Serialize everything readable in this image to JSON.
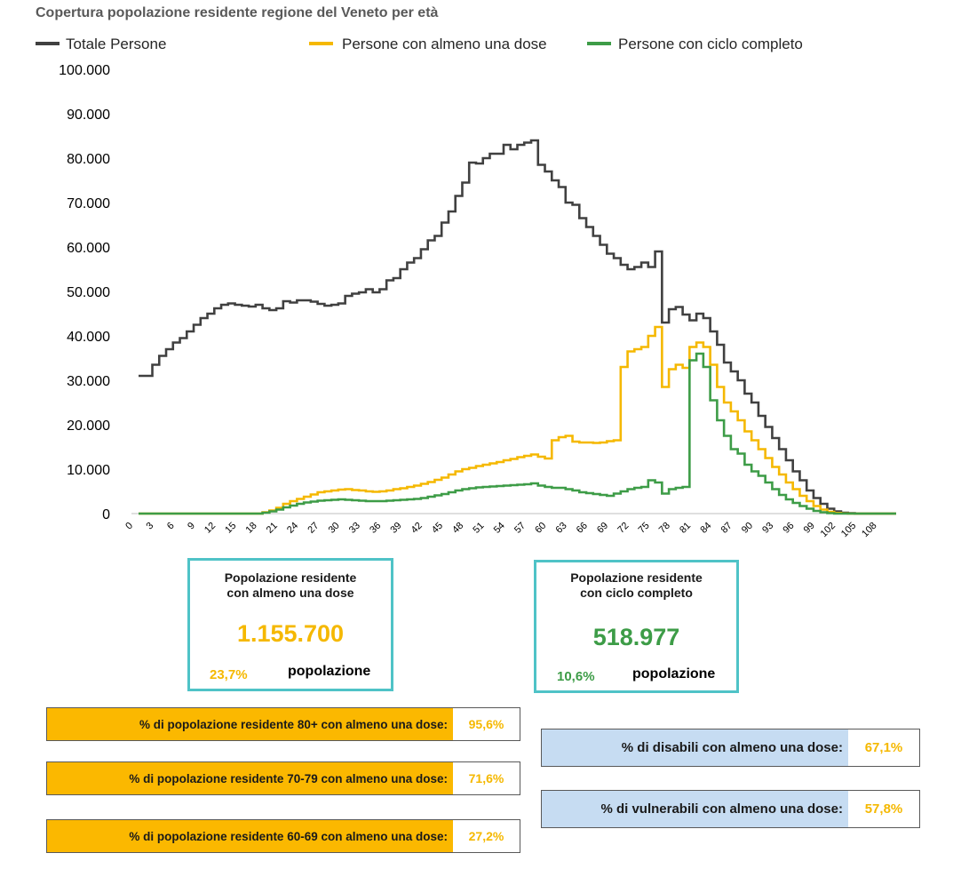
{
  "chart_data": {
    "type": "line",
    "title": "Copertura popolazione residente regione del Veneto per età",
    "ylim": [
      0,
      100000
    ],
    "xlim": [
      0,
      110
    ],
    "ytick_labels": [
      "0",
      "10.000",
      "20.000",
      "30.000",
      "40.000",
      "50.000",
      "60.000",
      "70.000",
      "80.000",
      "90.000",
      "100.000"
    ],
    "ytick_values": [
      0,
      10000,
      20000,
      30000,
      40000,
      50000,
      60000,
      70000,
      80000,
      90000,
      100000
    ],
    "xtick_values": [
      0,
      3,
      6,
      9,
      12,
      15,
      18,
      21,
      24,
      27,
      30,
      33,
      36,
      39,
      42,
      45,
      48,
      51,
      54,
      57,
      60,
      63,
      66,
      69,
      72,
      75,
      78,
      81,
      84,
      87,
      90,
      93,
      96,
      99,
      102,
      105,
      108
    ],
    "xtick_labels": [
      "0",
      "3",
      "6",
      "9",
      "12",
      "15",
      "18",
      "21",
      "24",
      "27",
      "30",
      "33",
      "36",
      "39",
      "42",
      "45",
      "48",
      "51",
      "54",
      "57",
      "60",
      "63",
      "66",
      "69",
      "72",
      "75",
      "78",
      "81",
      "84",
      "87",
      "90",
      "93",
      "96",
      "99",
      "102",
      "105",
      "108"
    ],
    "legend_position": "top",
    "grid": false,
    "step": true,
    "series": [
      {
        "name": "Totale Persone",
        "color": "#404040",
        "values": [
          [
            0,
            31000
          ],
          [
            2,
            33500
          ],
          [
            3,
            35500
          ],
          [
            4,
            37000
          ],
          [
            5,
            38500
          ],
          [
            6,
            39500
          ],
          [
            7,
            41000
          ],
          [
            8,
            42500
          ],
          [
            9,
            44000
          ],
          [
            10,
            45000
          ],
          [
            11,
            46200
          ],
          [
            12,
            47000
          ],
          [
            13,
            47300
          ],
          [
            14,
            47000
          ],
          [
            15,
            46800
          ],
          [
            16,
            46600
          ],
          [
            17,
            47000
          ],
          [
            18,
            46200
          ],
          [
            19,
            45800
          ],
          [
            20,
            46200
          ],
          [
            21,
            47800
          ],
          [
            22,
            47500
          ],
          [
            23,
            48000
          ],
          [
            24,
            48000
          ],
          [
            25,
            47700
          ],
          [
            26,
            47200
          ],
          [
            27,
            46800
          ],
          [
            28,
            47000
          ],
          [
            29,
            47300
          ],
          [
            30,
            49000
          ],
          [
            31,
            49500
          ],
          [
            32,
            49800
          ],
          [
            33,
            50500
          ],
          [
            34,
            49800
          ],
          [
            35,
            50500
          ],
          [
            36,
            52500
          ],
          [
            37,
            53000
          ],
          [
            38,
            55000
          ],
          [
            39,
            56500
          ],
          [
            40,
            57500
          ],
          [
            41,
            59500
          ],
          [
            42,
            61500
          ],
          [
            43,
            62500
          ],
          [
            44,
            65500
          ],
          [
            45,
            68000
          ],
          [
            46,
            71500
          ],
          [
            47,
            74500
          ],
          [
            48,
            79000
          ],
          [
            49,
            78800
          ],
          [
            50,
            80000
          ],
          [
            51,
            81000
          ],
          [
            52,
            81000
          ],
          [
            53,
            83000
          ],
          [
            54,
            82000
          ],
          [
            55,
            83000
          ],
          [
            56,
            83500
          ],
          [
            57,
            84000
          ],
          [
            58,
            78500
          ],
          [
            59,
            77000
          ],
          [
            60,
            75000
          ],
          [
            61,
            73500
          ],
          [
            62,
            70000
          ],
          [
            63,
            69500
          ],
          [
            64,
            66500
          ],
          [
            65,
            64500
          ],
          [
            66,
            62500
          ],
          [
            67,
            60500
          ],
          [
            68,
            58500
          ],
          [
            69,
            57500
          ],
          [
            70,
            56000
          ],
          [
            71,
            55000
          ],
          [
            72,
            55500
          ],
          [
            73,
            56500
          ],
          [
            74,
            55500
          ],
          [
            75,
            59000
          ],
          [
            76,
            43000
          ],
          [
            77,
            46000
          ],
          [
            78,
            46500
          ],
          [
            79,
            44800
          ],
          [
            80,
            43500
          ],
          [
            81,
            45000
          ],
          [
            82,
            44000
          ],
          [
            83,
            41000
          ],
          [
            84,
            38000
          ],
          [
            85,
            34000
          ],
          [
            86,
            32000
          ],
          [
            87,
            30000
          ],
          [
            88,
            27000
          ],
          [
            89,
            25000
          ],
          [
            90,
            22000
          ],
          [
            91,
            19500
          ],
          [
            92,
            17000
          ],
          [
            93,
            14500
          ],
          [
            94,
            12000
          ],
          [
            95,
            9500
          ],
          [
            96,
            7500
          ],
          [
            97,
            5200
          ],
          [
            98,
            3500
          ],
          [
            99,
            2200
          ],
          [
            100,
            1100
          ],
          [
            101,
            500
          ],
          [
            102,
            200
          ],
          [
            103,
            80
          ],
          [
            104,
            0
          ],
          [
            110,
            0
          ]
        ]
      },
      {
        "name": "Persone con almeno una dose",
        "color": "#f5b800",
        "values": [
          [
            0,
            0
          ],
          [
            17,
            0
          ],
          [
            18,
            300
          ],
          [
            19,
            700
          ],
          [
            20,
            1300
          ],
          [
            21,
            2200
          ],
          [
            22,
            2800
          ],
          [
            23,
            3300
          ],
          [
            24,
            3800
          ],
          [
            25,
            4300
          ],
          [
            26,
            4800
          ],
          [
            27,
            5000
          ],
          [
            28,
            5200
          ],
          [
            29,
            5400
          ],
          [
            30,
            5500
          ],
          [
            31,
            5300
          ],
          [
            32,
            5200
          ],
          [
            33,
            5000
          ],
          [
            34,
            4900
          ],
          [
            35,
            5000
          ],
          [
            36,
            5200
          ],
          [
            37,
            5500
          ],
          [
            38,
            5700
          ],
          [
            39,
            6000
          ],
          [
            40,
            6300
          ],
          [
            41,
            6700
          ],
          [
            42,
            7100
          ],
          [
            43,
            7600
          ],
          [
            44,
            8100
          ],
          [
            45,
            8800
          ],
          [
            46,
            9500
          ],
          [
            47,
            10000
          ],
          [
            48,
            10300
          ],
          [
            49,
            10700
          ],
          [
            50,
            11000
          ],
          [
            51,
            11300
          ],
          [
            52,
            11600
          ],
          [
            53,
            12000
          ],
          [
            54,
            12300
          ],
          [
            55,
            12700
          ],
          [
            56,
            13000
          ],
          [
            57,
            13300
          ],
          [
            58,
            12800
          ],
          [
            59,
            12400
          ],
          [
            60,
            16500
          ],
          [
            61,
            17200
          ],
          [
            62,
            17500
          ],
          [
            63,
            16200
          ],
          [
            64,
            16000
          ],
          [
            65,
            16000
          ],
          [
            66,
            15900
          ],
          [
            67,
            16000
          ],
          [
            68,
            16300
          ],
          [
            69,
            16500
          ],
          [
            70,
            33000
          ],
          [
            71,
            36500
          ],
          [
            72,
            37000
          ],
          [
            73,
            37500
          ],
          [
            74,
            40000
          ],
          [
            75,
            42000
          ],
          [
            76,
            28500
          ],
          [
            77,
            32500
          ],
          [
            78,
            33500
          ],
          [
            79,
            32800
          ],
          [
            80,
            37500
          ],
          [
            81,
            38500
          ],
          [
            82,
            37500
          ],
          [
            83,
            33500
          ],
          [
            84,
            28500
          ],
          [
            85,
            25000
          ],
          [
            86,
            23000
          ],
          [
            87,
            21000
          ],
          [
            88,
            18500
          ],
          [
            89,
            16500
          ],
          [
            90,
            14500
          ],
          [
            91,
            12500
          ],
          [
            92,
            10500
          ],
          [
            93,
            8800
          ],
          [
            94,
            7000
          ],
          [
            95,
            5500
          ],
          [
            96,
            4000
          ],
          [
            97,
            2800
          ],
          [
            98,
            1700
          ],
          [
            99,
            900
          ],
          [
            100,
            400
          ],
          [
            101,
            150
          ],
          [
            102,
            50
          ],
          [
            103,
            0
          ],
          [
            110,
            0
          ]
        ]
      },
      {
        "name": "Persone con ciclo completo",
        "color": "#3d9c47",
        "values": [
          [
            0,
            0
          ],
          [
            17,
            0
          ],
          [
            18,
            200
          ],
          [
            19,
            500
          ],
          [
            20,
            900
          ],
          [
            21,
            1400
          ],
          [
            22,
            1800
          ],
          [
            23,
            2200
          ],
          [
            24,
            2500
          ],
          [
            25,
            2700
          ],
          [
            26,
            2900
          ],
          [
            27,
            3000
          ],
          [
            28,
            3100
          ],
          [
            29,
            3200
          ],
          [
            30,
            3100
          ],
          [
            31,
            3000
          ],
          [
            32,
            2900
          ],
          [
            33,
            2800
          ],
          [
            34,
            2800
          ],
          [
            35,
            2800
          ],
          [
            36,
            2900
          ],
          [
            37,
            3000
          ],
          [
            38,
            3100
          ],
          [
            39,
            3200
          ],
          [
            40,
            3300
          ],
          [
            41,
            3500
          ],
          [
            42,
            3800
          ],
          [
            43,
            4100
          ],
          [
            44,
            4400
          ],
          [
            45,
            4800
          ],
          [
            46,
            5200
          ],
          [
            47,
            5500
          ],
          [
            48,
            5700
          ],
          [
            49,
            5900
          ],
          [
            50,
            6000
          ],
          [
            51,
            6100
          ],
          [
            52,
            6200
          ],
          [
            53,
            6300
          ],
          [
            54,
            6400
          ],
          [
            55,
            6500
          ],
          [
            56,
            6600
          ],
          [
            57,
            6800
          ],
          [
            58,
            6300
          ],
          [
            59,
            6000
          ],
          [
            60,
            5800
          ],
          [
            61,
            5800
          ],
          [
            62,
            5500
          ],
          [
            63,
            5200
          ],
          [
            64,
            4800
          ],
          [
            65,
            4600
          ],
          [
            66,
            4400
          ],
          [
            67,
            4200
          ],
          [
            68,
            4000
          ],
          [
            69,
            4500
          ],
          [
            70,
            5000
          ],
          [
            71,
            5500
          ],
          [
            72,
            5800
          ],
          [
            73,
            6000
          ],
          [
            74,
            7500
          ],
          [
            75,
            7000
          ],
          [
            76,
            4500
          ],
          [
            77,
            5500
          ],
          [
            78,
            5800
          ],
          [
            79,
            6000
          ],
          [
            80,
            34500
          ],
          [
            81,
            36000
          ],
          [
            82,
            33000
          ],
          [
            83,
            25500
          ],
          [
            84,
            21000
          ],
          [
            85,
            17500
          ],
          [
            86,
            14500
          ],
          [
            87,
            13500
          ],
          [
            88,
            11000
          ],
          [
            89,
            9500
          ],
          [
            90,
            8500
          ],
          [
            91,
            7000
          ],
          [
            92,
            5500
          ],
          [
            93,
            4200
          ],
          [
            94,
            3200
          ],
          [
            95,
            2400
          ],
          [
            96,
            1700
          ],
          [
            97,
            1100
          ],
          [
            98,
            600
          ],
          [
            99,
            300
          ],
          [
            100,
            100
          ],
          [
            101,
            0
          ],
          [
            110,
            0
          ]
        ]
      }
    ]
  },
  "boxes": {
    "first_dose": {
      "title_line1": "Popolazione residente",
      "title_line2": "con almeno una dose",
      "value": "1.155.700",
      "value_color": "#f5b800",
      "percent": "23,7%",
      "pop_label": "popolazione"
    },
    "complete_cycle": {
      "title_line1": "Popolazione residente",
      "title_line2": "con ciclo completo",
      "value": "518.977",
      "value_color": "#3d9c47",
      "percent": "10,6%",
      "pop_label": "popolazione"
    }
  },
  "stats": {
    "age80": {
      "label": "% di popolazione residente 80+ con almeno una dose:",
      "value": "95,6%"
    },
    "age70": {
      "label": "% di popolazione residente 70-79 con almeno una dose:",
      "value": "71,6%"
    },
    "age60": {
      "label": "% di popolazione residente 60-69 con almeno una dose:",
      "value": "27,2%"
    },
    "disabled": {
      "label": "% di disabili con almeno una dose:",
      "value": "67,1%"
    },
    "vulnerable": {
      "label": "% di vulnerabili con almeno una dose:",
      "value": "57,8%"
    }
  },
  "colors": {
    "box_border": "#4fc3c7",
    "orange_fill": "#fbb800",
    "blue_fill": "#c6dcf2"
  }
}
